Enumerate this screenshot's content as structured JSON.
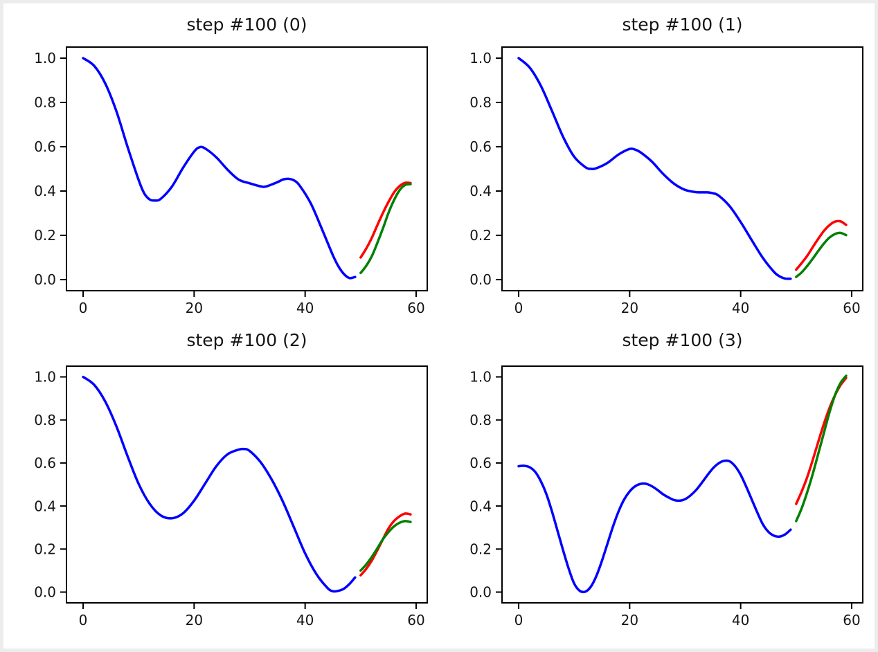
{
  "figure": {
    "background": "#ffffff",
    "surround_color": "#ececec",
    "axis_color": "#000000",
    "text_color": "#151515"
  },
  "chart_data": {
    "type": "line",
    "layout": "2x2-grid",
    "xlim": [
      -3,
      62
    ],
    "ylim": [
      -0.05,
      1.05
    ],
    "x_ticks": [
      0,
      20,
      40,
      60
    ],
    "y_ticks": [
      0.0,
      0.2,
      0.4,
      0.6,
      0.8,
      1.0
    ],
    "grid": false,
    "legend": "none",
    "series_colors": {
      "blue": "#0000ff",
      "red": "#ff0000",
      "green": "#008000"
    },
    "subplots": [
      {
        "title": "step #100 (0)",
        "series": [
          {
            "name": "blue-series",
            "color": "#0000ff",
            "points": [
              [
                0,
                1.0
              ],
              [
                2,
                0.965
              ],
              [
                4,
                0.885
              ],
              [
                6,
                0.76
              ],
              [
                8,
                0.6
              ],
              [
                10,
                0.45
              ],
              [
                11,
                0.39
              ],
              [
                12,
                0.362
              ],
              [
                13,
                0.357
              ],
              [
                14,
                0.365
              ],
              [
                16,
                0.42
              ],
              [
                18,
                0.505
              ],
              [
                20,
                0.578
              ],
              [
                21,
                0.598
              ],
              [
                22,
                0.592
              ],
              [
                24,
                0.552
              ],
              [
                26,
                0.497
              ],
              [
                28,
                0.452
              ],
              [
                30,
                0.435
              ],
              [
                32,
                0.421
              ],
              [
                33,
                0.421
              ],
              [
                35,
                0.44
              ],
              [
                36,
                0.452
              ],
              [
                37,
                0.455
              ],
              [
                38,
                0.448
              ],
              [
                39,
                0.425
              ],
              [
                41,
                0.345
              ],
              [
                43,
                0.23
              ],
              [
                45,
                0.11
              ],
              [
                46,
                0.06
              ],
              [
                47,
                0.025
              ],
              [
                48,
                0.007
              ],
              [
                49,
                0.012
              ]
            ]
          },
          {
            "name": "red-series",
            "color": "#ff0000",
            "points": [
              [
                50,
                0.1
              ],
              [
                51,
                0.14
              ],
              [
                52,
                0.188
              ],
              [
                53,
                0.245
              ],
              [
                54,
                0.3
              ],
              [
                55,
                0.35
              ],
              [
                56,
                0.393
              ],
              [
                57,
                0.422
              ],
              [
                58,
                0.437
              ],
              [
                59,
                0.436
              ]
            ]
          },
          {
            "name": "green-series",
            "color": "#008000",
            "points": [
              [
                50,
                0.03
              ],
              [
                51,
                0.062
              ],
              [
                52,
                0.105
              ],
              [
                53,
                0.165
              ],
              [
                54,
                0.23
              ],
              [
                55,
                0.3
              ],
              [
                56,
                0.358
              ],
              [
                57,
                0.403
              ],
              [
                58,
                0.427
              ],
              [
                59,
                0.431
              ]
            ]
          }
        ]
      },
      {
        "title": "step #100 (1)",
        "series": [
          {
            "name": "blue-series",
            "color": "#0000ff",
            "points": [
              [
                0,
                1.0
              ],
              [
                2,
                0.957
              ],
              [
                4,
                0.875
              ],
              [
                6,
                0.762
              ],
              [
                8,
                0.645
              ],
              [
                10,
                0.555
              ],
              [
                12,
                0.508
              ],
              [
                13,
                0.5
              ],
              [
                14,
                0.503
              ],
              [
                16,
                0.527
              ],
              [
                18,
                0.565
              ],
              [
                20,
                0.59
              ],
              [
                21,
                0.587
              ],
              [
                22,
                0.574
              ],
              [
                24,
                0.533
              ],
              [
                26,
                0.478
              ],
              [
                28,
                0.433
              ],
              [
                30,
                0.405
              ],
              [
                32,
                0.395
              ],
              [
                34,
                0.394
              ],
              [
                35,
                0.39
              ],
              [
                36,
                0.38
              ],
              [
                38,
                0.332
              ],
              [
                40,
                0.26
              ],
              [
                42,
                0.178
              ],
              [
                44,
                0.098
              ],
              [
                46,
                0.035
              ],
              [
                47,
                0.015
              ],
              [
                48,
                0.005
              ],
              [
                49,
                0.004
              ]
            ]
          },
          {
            "name": "red-series",
            "color": "#ff0000",
            "points": [
              [
                50,
                0.045
              ],
              [
                51,
                0.075
              ],
              [
                52,
                0.108
              ],
              [
                53,
                0.147
              ],
              [
                54,
                0.185
              ],
              [
                55,
                0.22
              ],
              [
                56,
                0.246
              ],
              [
                57,
                0.262
              ],
              [
                58,
                0.263
              ],
              [
                59,
                0.247
              ]
            ]
          },
          {
            "name": "green-series",
            "color": "#008000",
            "points": [
              [
                50,
                0.012
              ],
              [
                51,
                0.033
              ],
              [
                52,
                0.062
              ],
              [
                53,
                0.095
              ],
              [
                54,
                0.13
              ],
              [
                55,
                0.163
              ],
              [
                56,
                0.19
              ],
              [
                57,
                0.206
              ],
              [
                58,
                0.211
              ],
              [
                59,
                0.201
              ]
            ]
          }
        ]
      },
      {
        "title": "step #100 (2)",
        "series": [
          {
            "name": "blue-series",
            "color": "#0000ff",
            "points": [
              [
                0,
                1.0
              ],
              [
                2,
                0.963
              ],
              [
                4,
                0.885
              ],
              [
                6,
                0.77
              ],
              [
                8,
                0.632
              ],
              [
                10,
                0.503
              ],
              [
                12,
                0.41
              ],
              [
                14,
                0.356
              ],
              [
                16,
                0.343
              ],
              [
                18,
                0.366
              ],
              [
                20,
                0.425
              ],
              [
                22,
                0.505
              ],
              [
                24,
                0.585
              ],
              [
                26,
                0.64
              ],
              [
                28,
                0.662
              ],
              [
                29,
                0.665
              ],
              [
                30,
                0.656
              ],
              [
                32,
                0.603
              ],
              [
                34,
                0.522
              ],
              [
                36,
                0.42
              ],
              [
                38,
                0.3
              ],
              [
                40,
                0.18
              ],
              [
                42,
                0.085
              ],
              [
                44,
                0.02
              ],
              [
                45,
                0.004
              ],
              [
                46,
                0.006
              ],
              [
                47,
                0.016
              ],
              [
                48,
                0.038
              ],
              [
                49,
                0.068
              ]
            ]
          },
          {
            "name": "red-series",
            "color": "#ff0000",
            "points": [
              [
                50,
                0.078
              ],
              [
                51,
                0.108
              ],
              [
                52,
                0.146
              ],
              [
                53,
                0.194
              ],
              [
                54,
                0.245
              ],
              [
                55,
                0.295
              ],
              [
                56,
                0.33
              ],
              [
                57,
                0.352
              ],
              [
                58,
                0.365
              ],
              [
                59,
                0.361
              ]
            ]
          },
          {
            "name": "green-series",
            "color": "#008000",
            "points": [
              [
                50,
                0.1
              ],
              [
                51,
                0.128
              ],
              [
                52,
                0.163
              ],
              [
                53,
                0.203
              ],
              [
                54,
                0.245
              ],
              [
                55,
                0.278
              ],
              [
                56,
                0.305
              ],
              [
                57,
                0.322
              ],
              [
                58,
                0.33
              ],
              [
                59,
                0.326
              ]
            ]
          }
        ]
      },
      {
        "title": "step #100 (3)",
        "series": [
          {
            "name": "blue-series",
            "color": "#0000ff",
            "points": [
              [
                0,
                0.585
              ],
              [
                1,
                0.587
              ],
              [
                2,
                0.58
              ],
              [
                3,
                0.558
              ],
              [
                4,
                0.515
              ],
              [
                5,
                0.455
              ],
              [
                6,
                0.375
              ],
              [
                7,
                0.285
              ],
              [
                8,
                0.195
              ],
              [
                9,
                0.11
              ],
              [
                10,
                0.04
              ],
              [
                11,
                0.006
              ],
              [
                12,
                0.002
              ],
              [
                13,
                0.025
              ],
              [
                14,
                0.075
              ],
              [
                15,
                0.145
              ],
              [
                16,
                0.225
              ],
              [
                17,
                0.305
              ],
              [
                18,
                0.375
              ],
              [
                19,
                0.43
              ],
              [
                20,
                0.468
              ],
              [
                21,
                0.492
              ],
              [
                22,
                0.503
              ],
              [
                23,
                0.503
              ],
              [
                24,
                0.492
              ],
              [
                25,
                0.475
              ],
              [
                26,
                0.455
              ],
              [
                27,
                0.44
              ],
              [
                28,
                0.428
              ],
              [
                29,
                0.425
              ],
              [
                30,
                0.432
              ],
              [
                31,
                0.45
              ],
              [
                32,
                0.475
              ],
              [
                33,
                0.508
              ],
              [
                34,
                0.543
              ],
              [
                35,
                0.575
              ],
              [
                36,
                0.598
              ],
              [
                37,
                0.61
              ],
              [
                38,
                0.608
              ],
              [
                39,
                0.585
              ],
              [
                40,
                0.545
              ],
              [
                41,
                0.49
              ],
              [
                42,
                0.43
              ],
              [
                43,
                0.37
              ],
              [
                44,
                0.315
              ],
              [
                45,
                0.28
              ],
              [
                46,
                0.262
              ],
              [
                47,
                0.258
              ],
              [
                48,
                0.268
              ],
              [
                49,
                0.29
              ]
            ]
          },
          {
            "name": "red-series",
            "color": "#ff0000",
            "points": [
              [
                50,
                0.41
              ],
              [
                51,
                0.468
              ],
              [
                52,
                0.535
              ],
              [
                53,
                0.615
              ],
              [
                54,
                0.7
              ],
              [
                55,
                0.782
              ],
              [
                56,
                0.855
              ],
              [
                57,
                0.915
              ],
              [
                58,
                0.962
              ],
              [
                59,
                0.995
              ]
            ]
          },
          {
            "name": "green-series",
            "color": "#008000",
            "points": [
              [
                50,
                0.33
              ],
              [
                51,
                0.39
              ],
              [
                52,
                0.465
              ],
              [
                53,
                0.55
              ],
              [
                54,
                0.645
              ],
              [
                55,
                0.74
              ],
              [
                56,
                0.835
              ],
              [
                57,
                0.915
              ],
              [
                58,
                0.972
              ],
              [
                59,
                1.005
              ]
            ]
          }
        ]
      }
    ]
  }
}
